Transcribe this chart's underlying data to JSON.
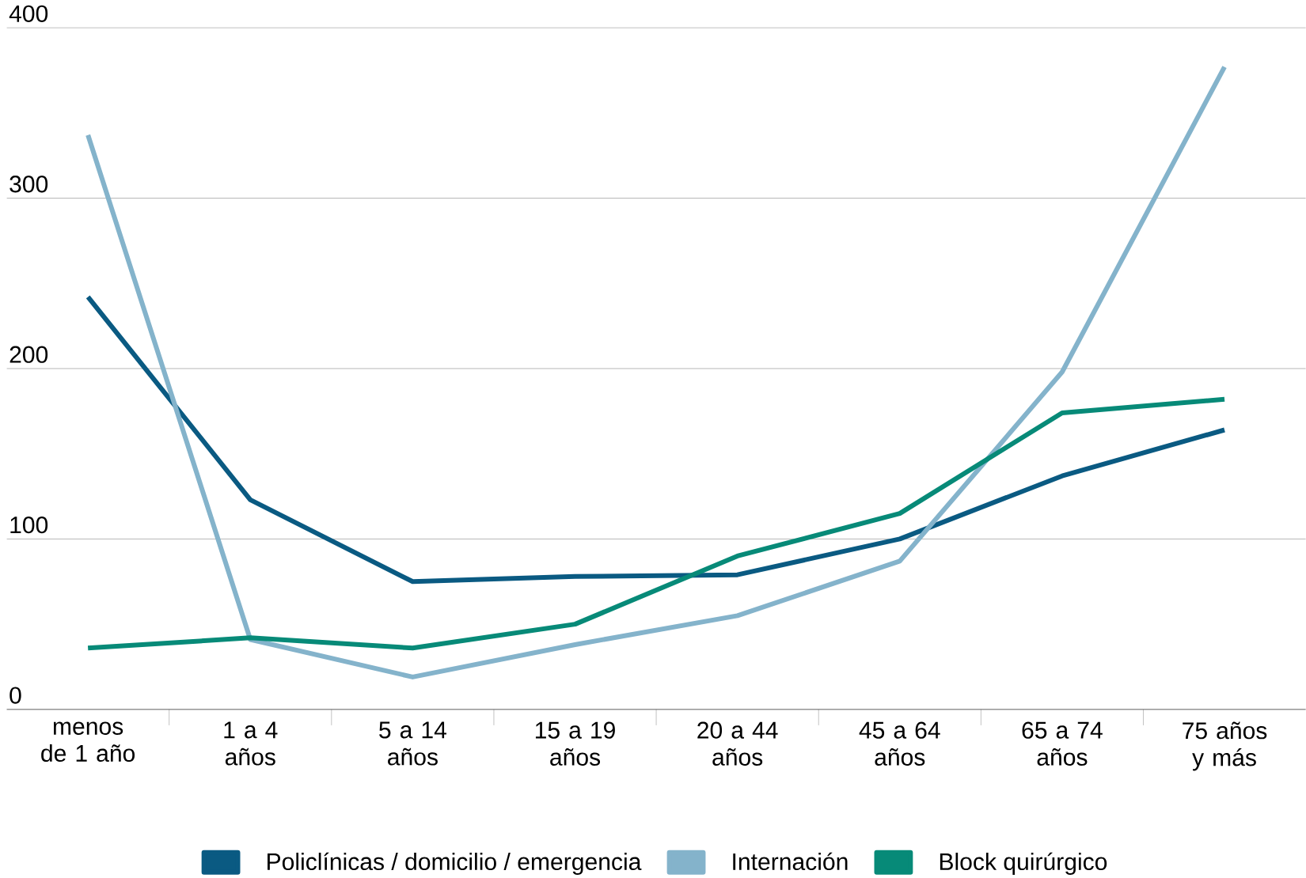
{
  "chart_data": {
    "type": "line",
    "categories": [
      "menos de 1 año",
      "1 a 4 años",
      "5 a 14 años",
      "15 a 19 años",
      "20 a 44 años",
      "45 a 64 años",
      "65 a 74 años",
      "75 años y más"
    ],
    "series": [
      {
        "name": "Policlínicas / domicilio / emergencia",
        "color": "#0a5a82",
        "values": [
          242,
          123,
          75,
          78,
          79,
          100,
          137,
          164
        ]
      },
      {
        "name": "Internación",
        "color": "#84b3cb",
        "values": [
          337,
          41,
          19,
          38,
          55,
          87,
          198,
          377
        ]
      },
      {
        "name": "Block quirúrgico",
        "color": "#078a78",
        "values": [
          36,
          42,
          36,
          50,
          90,
          115,
          174,
          182
        ]
      }
    ],
    "ylim": [
      0,
      400
    ],
    "yticks": [
      0,
      100,
      200,
      300,
      400
    ],
    "grid": "y",
    "legend": "bottom",
    "marker": "none",
    "line_style": "solid"
  }
}
